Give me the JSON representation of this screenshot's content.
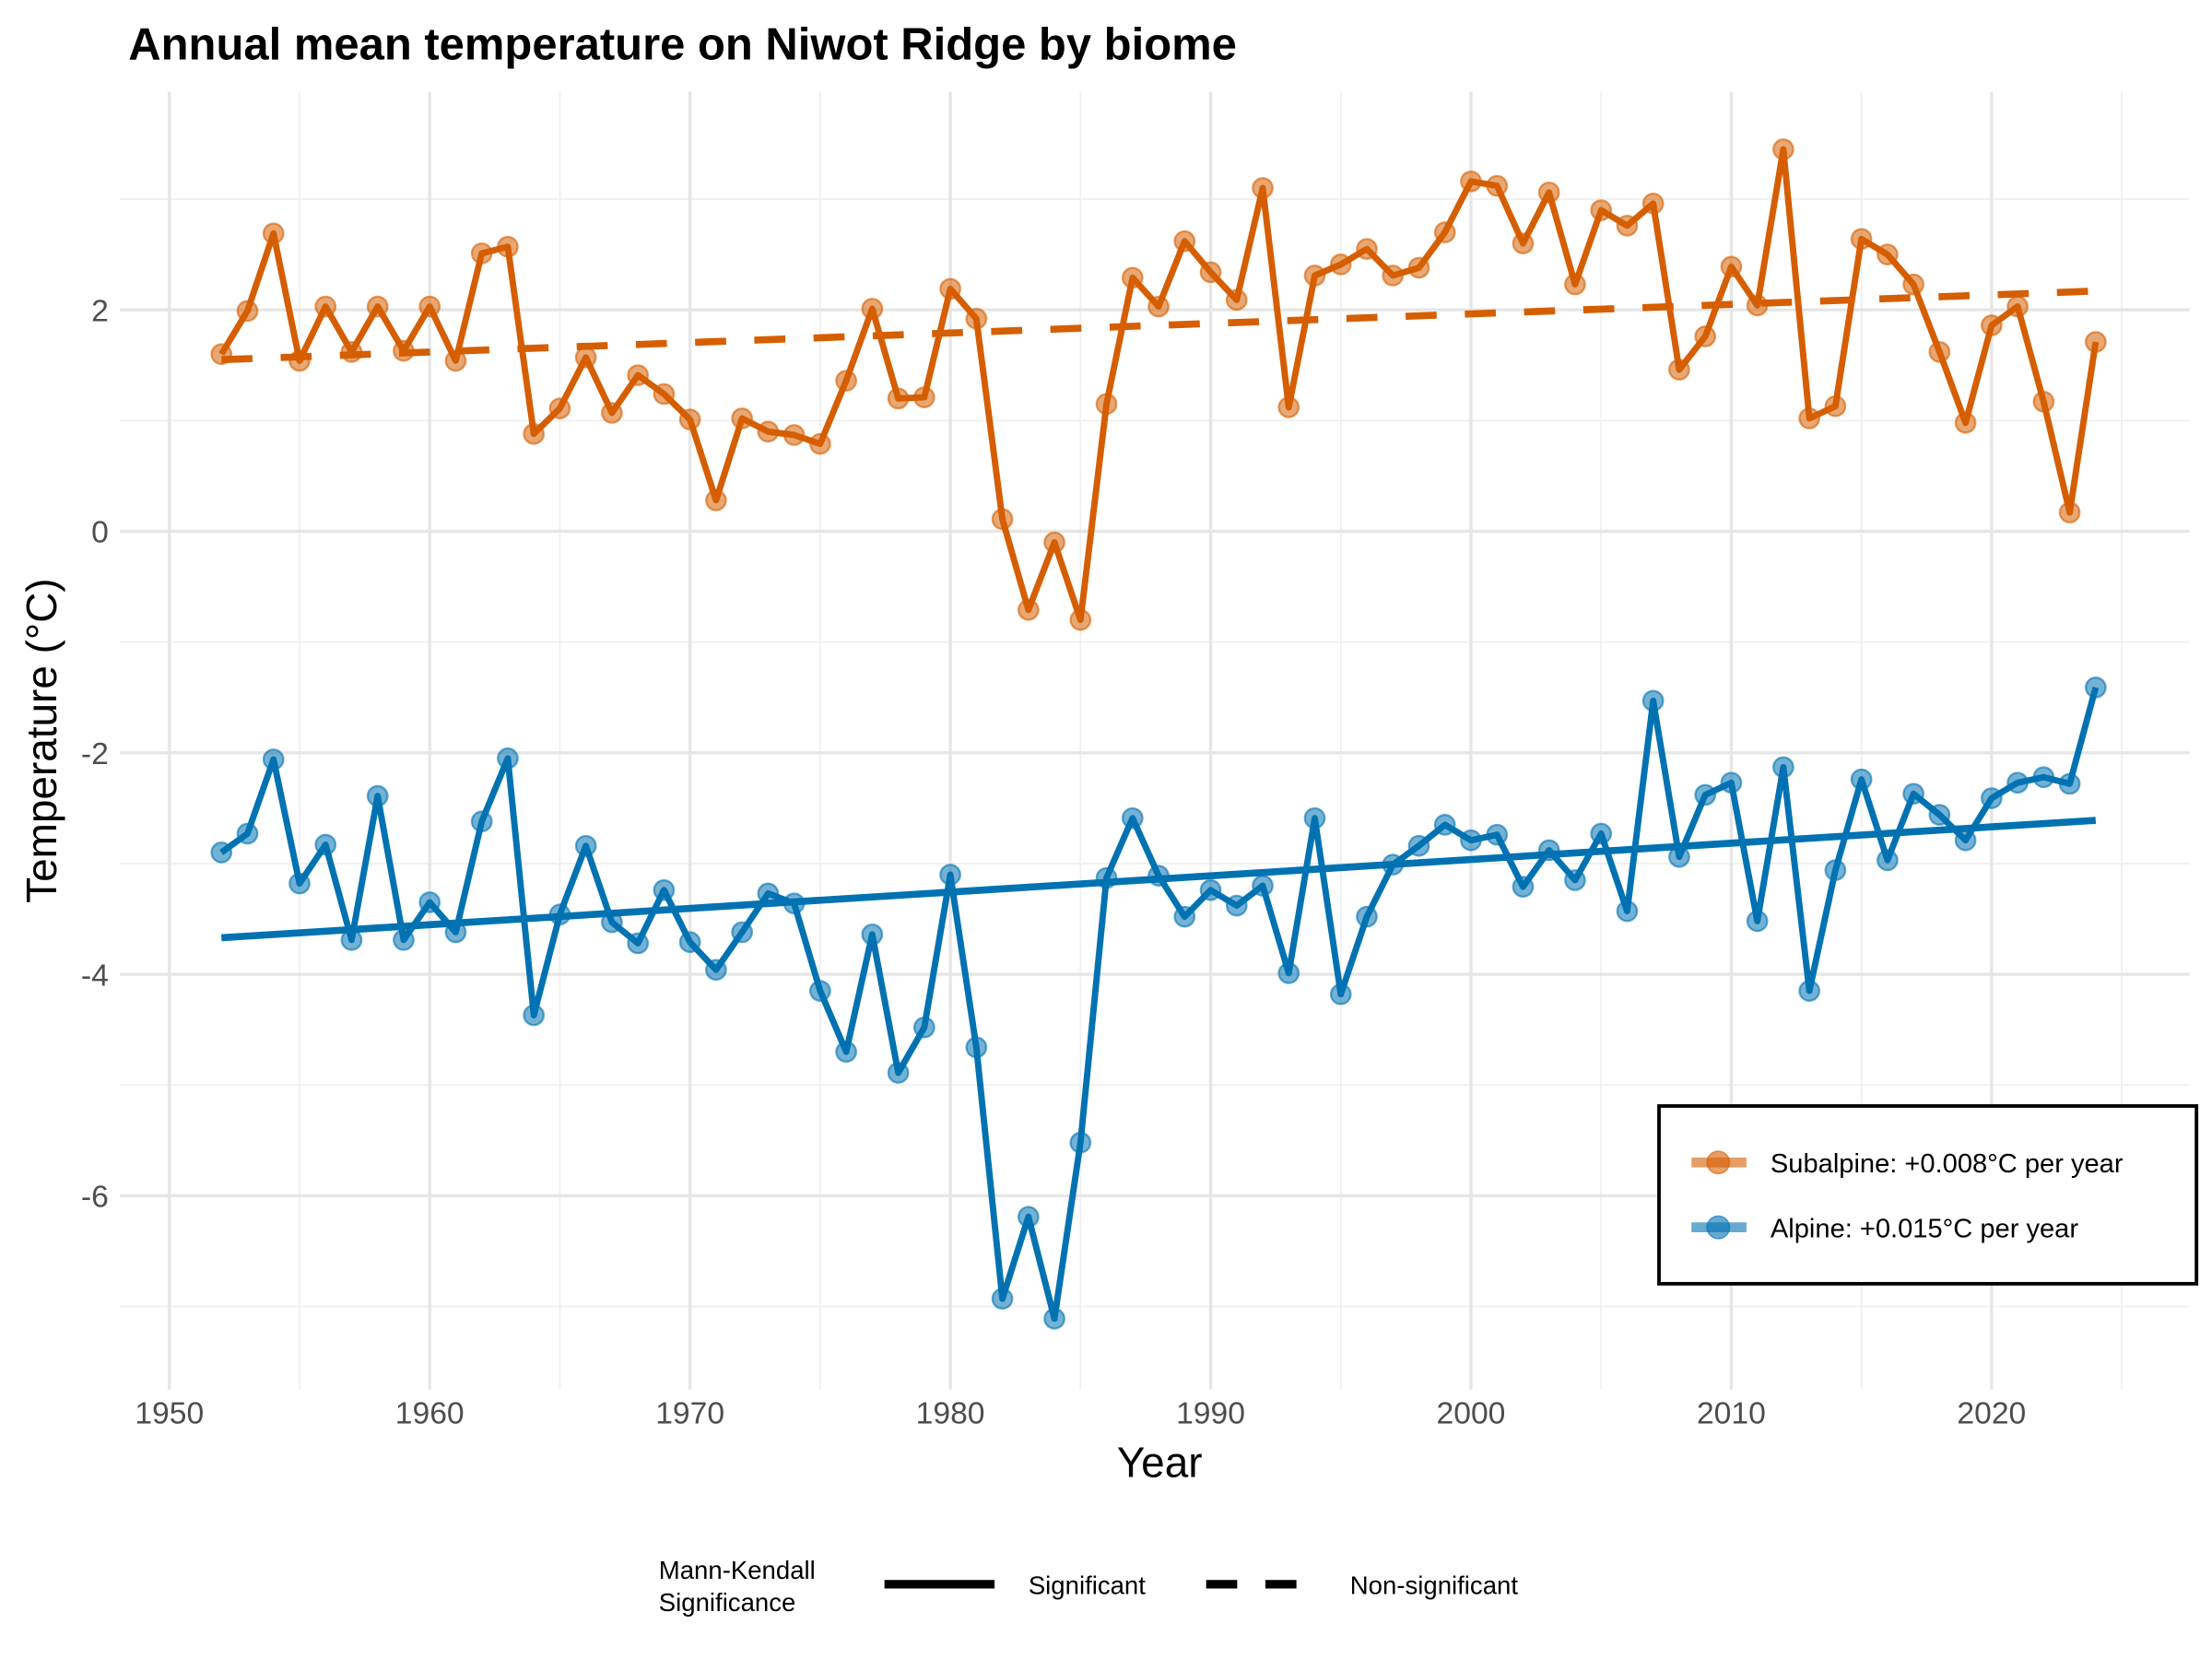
{
  "chart_data": {
    "type": "line",
    "title": "Annual mean temperature on Niwot Ridge by biome",
    "xlabel": "Year",
    "ylabel": "Temperature (°C)",
    "xlim": [
      1948.1,
      2027.6
    ],
    "ylim": [
      -7.75,
      3.97
    ],
    "xticks": [
      1950,
      1960,
      1970,
      1980,
      1990,
      2000,
      2010,
      2020
    ],
    "yticks": [
      -6,
      -4,
      -2,
      0,
      2
    ],
    "grid": true,
    "legend_position": "bottom-right",
    "x": [
      1952,
      1953,
      1954,
      1955,
      1956,
      1957,
      1958,
      1959,
      1960,
      1961,
      1962,
      1963,
      1964,
      1965,
      1966,
      1967,
      1968,
      1969,
      1970,
      1971,
      1972,
      1973,
      1974,
      1975,
      1976,
      1977,
      1978,
      1979,
      1980,
      1981,
      1982,
      1983,
      1984,
      1985,
      1986,
      1987,
      1988,
      1989,
      1990,
      1991,
      1992,
      1993,
      1994,
      1995,
      1996,
      1997,
      1998,
      1999,
      2000,
      2001,
      2002,
      2003,
      2004,
      2005,
      2006,
      2007,
      2008,
      2009,
      2010,
      2011,
      2012,
      2013,
      2014,
      2015,
      2016,
      2017,
      2018,
      2019,
      2020,
      2021,
      2022,
      2023,
      2024
    ],
    "series": [
      {
        "name": "Subalpine: +0.008°C per year",
        "color": "#D55E00",
        "trend_style": "dashed",
        "trend": {
          "x": [
            1952,
            2024
          ],
          "y": [
            1.55,
            2.17
          ]
        },
        "values": [
          1.6,
          1.99,
          2.69,
          1.54,
          2.03,
          1.62,
          2.03,
          1.63,
          2.03,
          1.54,
          2.51,
          2.57,
          0.88,
          1.11,
          1.57,
          1.07,
          1.41,
          1.24,
          1.01,
          0.28,
          1.02,
          0.9,
          0.87,
          0.79,
          1.36,
          2.01,
          1.2,
          1.21,
          2.19,
          1.92,
          0.11,
          -0.71,
          -0.1,
          -0.8,
          1.15,
          2.29,
          2.03,
          2.62,
          2.34,
          2.09,
          3.1,
          1.12,
          2.31,
          2.41,
          2.55,
          2.31,
          2.38,
          2.7,
          3.16,
          3.12,
          2.6,
          3.06,
          2.23,
          2.9,
          2.76,
          2.96,
          1.46,
          1.76,
          2.39,
          2.04,
          3.45,
          1.02,
          1.13,
          2.64,
          2.5,
          2.23,
          1.62,
          0.98,
          1.86,
          2.03,
          1.17,
          0.17,
          1.71
        ]
      },
      {
        "name": "Alpine: +0.015°C per year",
        "color": "#0072B2",
        "trend_style": "solid",
        "trend": {
          "x": [
            1952,
            2024
          ],
          "y": [
            -3.67,
            -2.61
          ]
        },
        "values": [
          -2.9,
          -2.73,
          -2.06,
          -3.18,
          -2.83,
          -3.69,
          -2.39,
          -3.69,
          -3.35,
          -3.62,
          -2.62,
          -2.05,
          -4.37,
          -3.46,
          -2.84,
          -3.53,
          -3.72,
          -3.24,
          -3.71,
          -3.96,
          -3.62,
          -3.27,
          -3.36,
          -4.15,
          -4.7,
          -3.64,
          -4.89,
          -4.48,
          -3.1,
          -4.66,
          -6.93,
          -6.19,
          -7.11,
          -5.52,
          -3.13,
          -2.59,
          -3.11,
          -3.48,
          -3.24,
          -3.38,
          -3.2,
          -3.99,
          -2.59,
          -4.18,
          -3.48,
          -3.01,
          -2.84,
          -2.65,
          -2.79,
          -2.74,
          -3.21,
          -2.88,
          -3.15,
          -2.73,
          -3.43,
          -1.53,
          -2.94,
          -2.38,
          -2.27,
          -3.52,
          -2.13,
          -4.15,
          -3.06,
          -2.24,
          -2.97,
          -2.37,
          -2.56,
          -2.79,
          -2.41,
          -2.27,
          -2.22,
          -2.28,
          -1.41
        ]
      }
    ],
    "significance_legend": {
      "title_line1": "Mann-Kendall",
      "title_line2": "Significance",
      "items": [
        "Significant",
        "Non-significant"
      ]
    }
  }
}
